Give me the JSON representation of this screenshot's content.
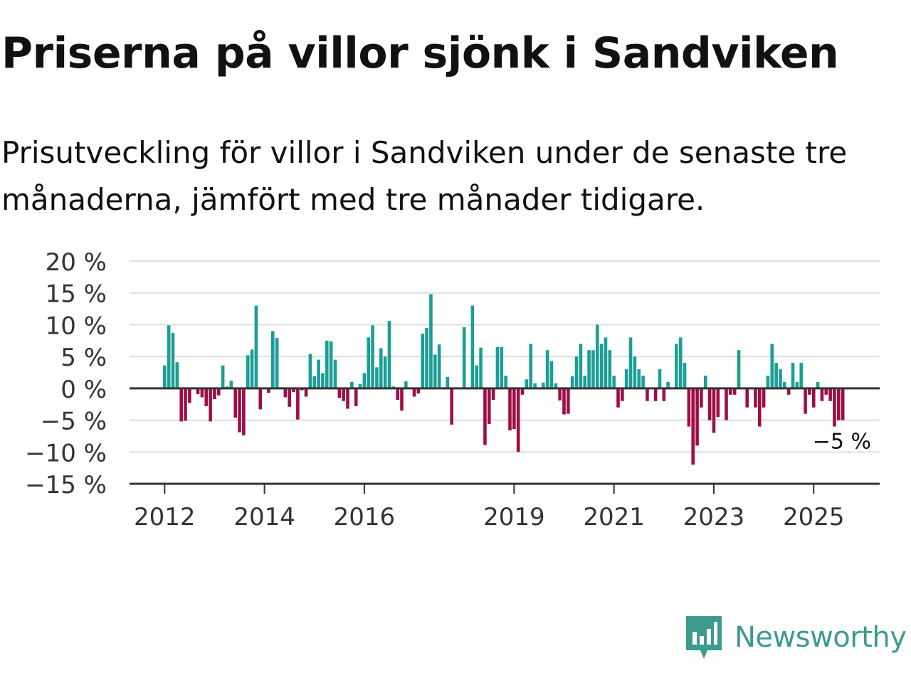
{
  "title": "Priserna på villor sjönk i Sandviken",
  "subtitle": "Prisutveckling för villor i Sandviken under de senaste tre månaderna, jämfört med tre månader tidigare.",
  "brand": {
    "name": "Newsworthy",
    "logo_icon": "newsworthy-logo-icon"
  },
  "colors": {
    "positive": "#1a9e96",
    "negative": "#a00d44",
    "grid": "#dddddd",
    "axis": "#333333",
    "brand": "#3d9a8f"
  },
  "chart_data": {
    "type": "bar",
    "title": "Priserna på villor sjönk i Sandviken",
    "subtitle": "Prisutveckling för villor i Sandviken under de senaste tre månaderna, jämfört med tre månader tidigare.",
    "xlabel": "",
    "ylabel": "",
    "ylim": [
      -15,
      20
    ],
    "yticks": [
      20,
      15,
      10,
      5,
      0,
      -5,
      -10,
      -15
    ],
    "ytick_labels": [
      "20 %",
      "15 %",
      "10 %",
      "5 %",
      "0 %",
      "−5 %",
      "−10 %",
      "−15 %"
    ],
    "xtick_labels": [
      "2012",
      "2014",
      "2016",
      "2019",
      "2021",
      "2023",
      "2025"
    ],
    "x_start": "2012-01",
    "x_end": "2025-08",
    "frequency": "monthly",
    "grid": true,
    "annotation": {
      "text": "−5 %",
      "target": "last"
    },
    "values": [
      3.6,
      9.9,
      8.7,
      4.1,
      -5.2,
      -5.1,
      -2.3,
      -0.1,
      -0.9,
      -1.4,
      -2.8,
      -5.2,
      -1.7,
      -1.1,
      3.6,
      0.3,
      1.2,
      -4.6,
      -6.9,
      -7.4,
      5.2,
      6.1,
      13.0,
      -3.3,
      0.1,
      -0.7,
      9.0,
      7.9,
      0.0,
      -1.4,
      -2.9,
      -0.6,
      -4.9,
      -0.3,
      -1.3,
      5.4,
      1.9,
      4.5,
      2.4,
      7.5,
      7.4,
      4.5,
      -1.5,
      -2.0,
      -3.2,
      1.0,
      -2.8,
      0.7,
      2.4,
      8.0,
      9.9,
      3.3,
      6.3,
      5.0,
      10.6,
      0.3,
      -1.8,
      -3.5,
      1.1,
      0.0,
      -1.3,
      -0.8,
      8.6,
      9.5,
      14.8,
      5.3,
      6.9,
      0.0,
      1.8,
      -5.7,
      0.0,
      0.0,
      9.6,
      0.0,
      13.0,
      3.6,
      6.4,
      -8.9,
      -5.6,
      -1.8,
      6.5,
      6.5,
      2.0,
      -6.6,
      -6.4,
      -10.0,
      -1.0,
      1.4,
      7.0,
      0.8,
      0.0,
      0.9,
      6.0,
      4.3,
      0.8,
      -1.9,
      -4.1,
      -4.0,
      1.9,
      5.0,
      7.0,
      2.0,
      6.0,
      6.0,
      10.0,
      7.0,
      8.0,
      6.0,
      2.0,
      -3.0,
      -2.0,
      3.0,
      8.0,
      5.0,
      3.0,
      2.0,
      -2.0,
      0.0,
      -2.0,
      3.0,
      -2.0,
      1.0,
      0.0,
      7.0,
      8.0,
      4.0,
      -6.0,
      -12.0,
      -9.0,
      -3.0,
      2.0,
      -5.0,
      -7.0,
      -4.5,
      0.0,
      -5.0,
      -1.0,
      -1.0,
      6.0,
      0.0,
      -3.0,
      0.0,
      -3.0,
      -6.0,
      -3.0,
      2.0,
      7.0,
      4.0,
      3.0,
      1.0,
      -1.0,
      4.0,
      1.0,
      4.0,
      -4.0,
      -1.0,
      -3.0,
      1.0,
      -2.0,
      -1.0,
      -2.0,
      -6.0,
      -5.0,
      -5.0
    ]
  }
}
